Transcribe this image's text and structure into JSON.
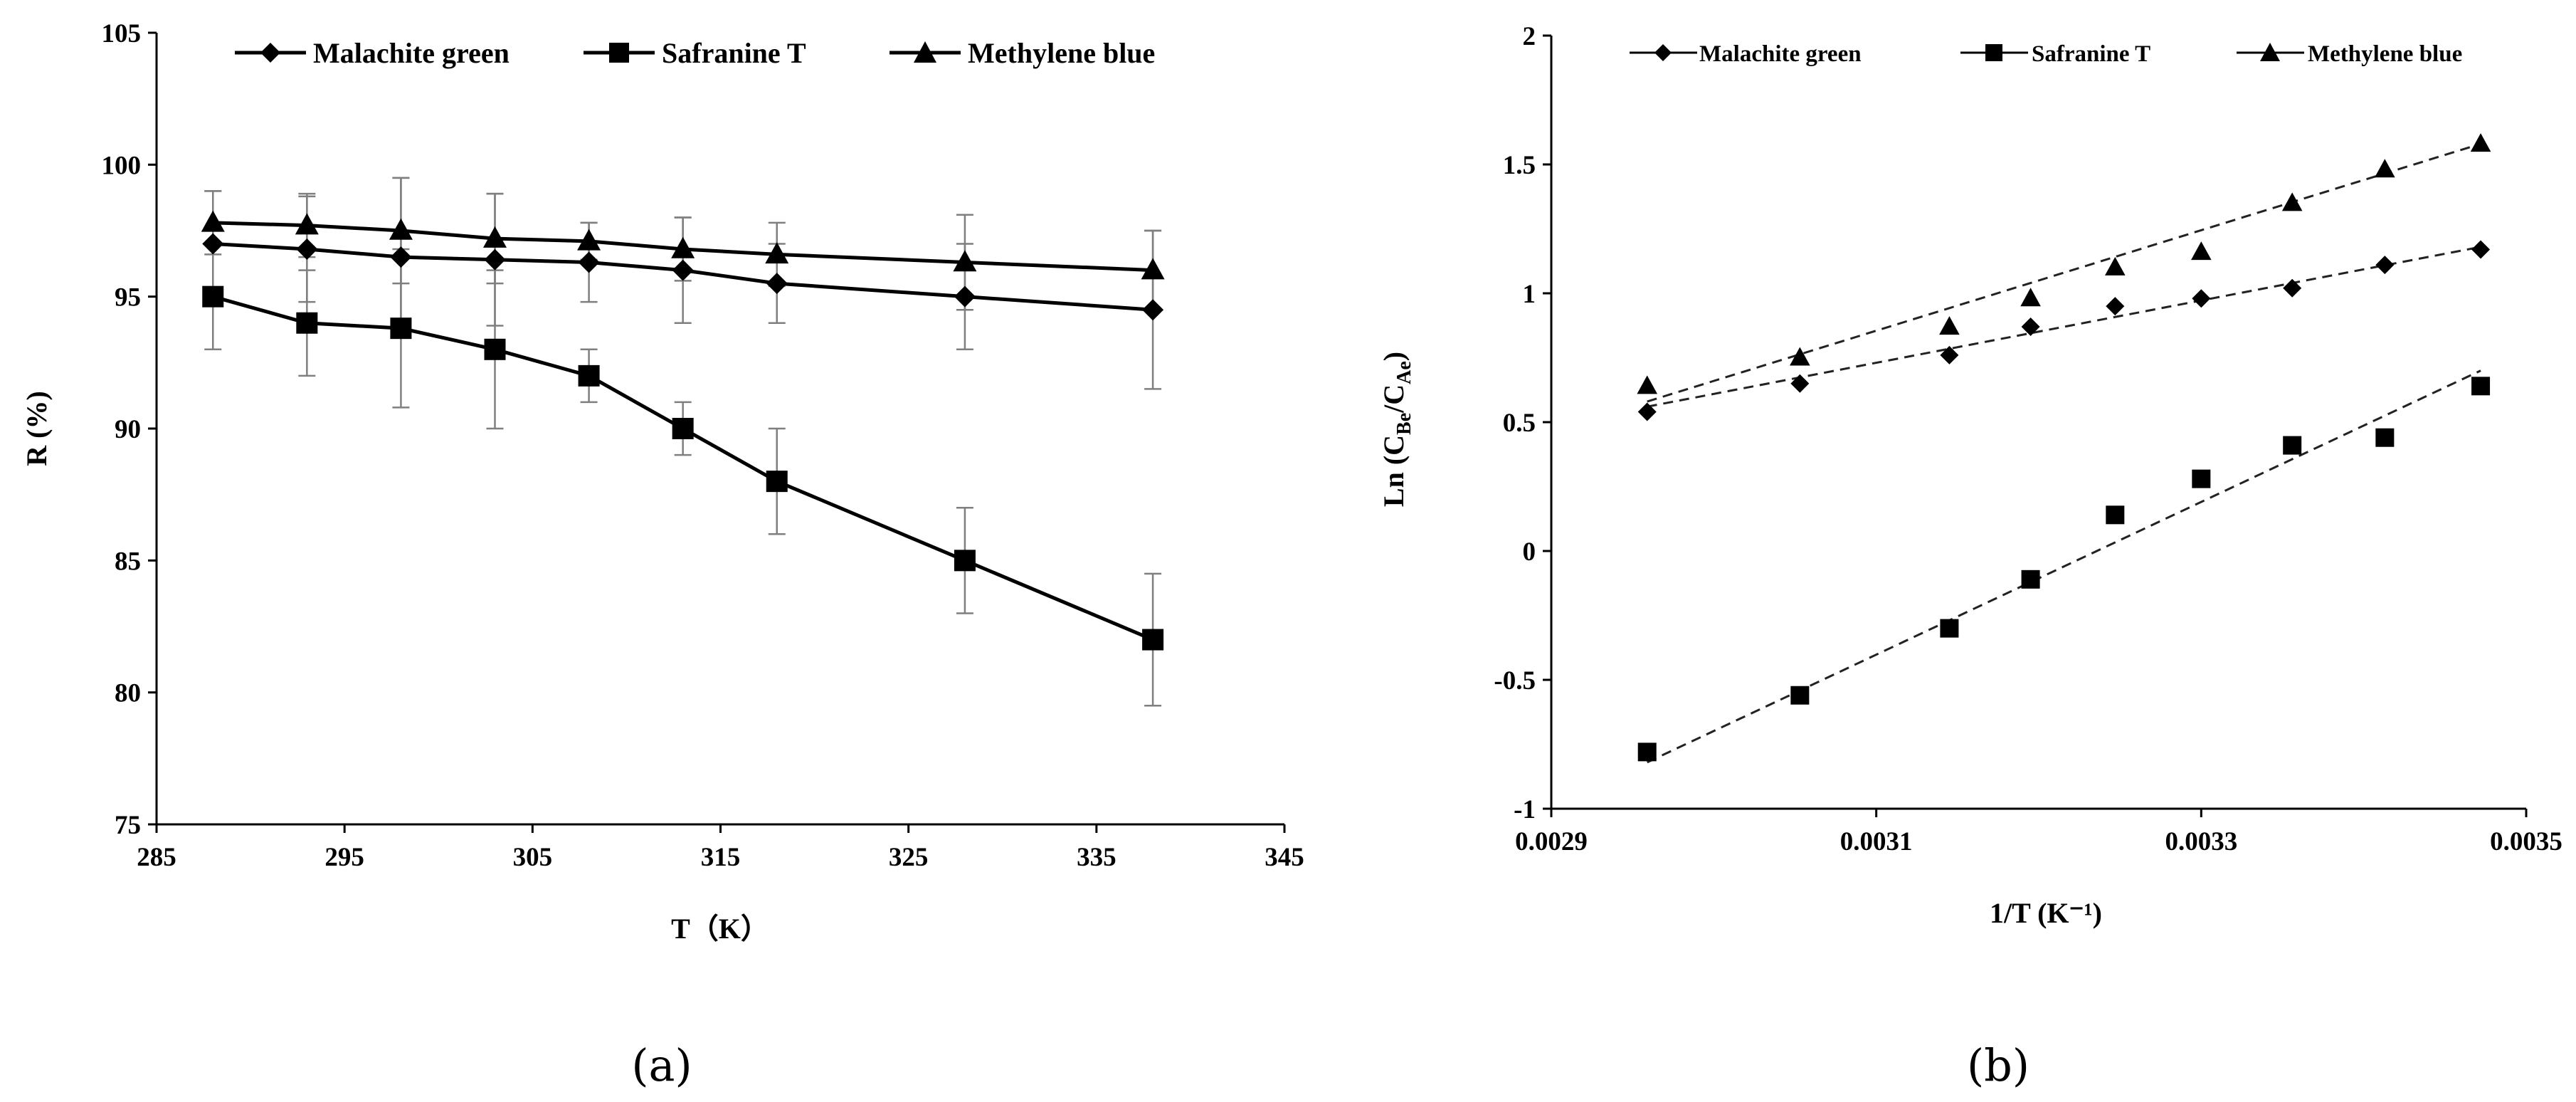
{
  "chart_data": [
    {
      "id": "a",
      "type": "line",
      "panel_label": "(a)",
      "xlabel": "T（K）",
      "ylabel": "R (%)",
      "xlim": [
        285,
        345
      ],
      "ylim": [
        75,
        105
      ],
      "xticks": [
        285,
        295,
        305,
        315,
        325,
        335,
        345
      ],
      "yticks": [
        75,
        80,
        85,
        90,
        95,
        100,
        105
      ],
      "legend_position": "top",
      "series": [
        {
          "name": "Malachite green",
          "marker": "diamond",
          "x": [
            288,
            293,
            298,
            303,
            308,
            313,
            318,
            328,
            338
          ],
          "y": [
            97.0,
            96.8,
            96.5,
            96.4,
            96.3,
            96.0,
            95.5,
            95.0,
            94.5
          ],
          "err": [
            2.0,
            2.0,
            3.0,
            2.5,
            1.5,
            2.0,
            1.5,
            2.0,
            3.0
          ]
        },
        {
          "name": "Safranine T",
          "marker": "square",
          "x": [
            288,
            293,
            298,
            303,
            308,
            313,
            318,
            328,
            338
          ],
          "y": [
            95.0,
            94.0,
            93.8,
            93.0,
            92.0,
            90.0,
            88.0,
            85.0,
            82.0
          ],
          "err": [
            2.0,
            2.0,
            3.0,
            3.0,
            1.0,
            1.0,
            2.0,
            2.0,
            2.5
          ]
        },
        {
          "name": "Methylene blue",
          "marker": "triangle",
          "x": [
            288,
            293,
            298,
            303,
            308,
            313,
            318,
            328,
            338
          ],
          "y": [
            97.8,
            97.7,
            97.5,
            97.2,
            97.1,
            96.8,
            96.6,
            96.3,
            96.0
          ],
          "err": [
            1.2,
            1.2,
            2.0,
            1.7,
            0.7,
            1.2,
            1.2,
            1.8,
            1.5
          ]
        }
      ]
    },
    {
      "id": "b",
      "type": "scatter",
      "panel_label": "(b)",
      "xlabel": "1/T (K⁻¹)",
      "ylabel": "Ln (C_Be/C_Ae)",
      "ylabel_main": "Ln (C",
      "ylabel_sub1": "Be",
      "ylabel_mid": "/C",
      "ylabel_sub2": "Ae",
      "ylabel_end": ")",
      "xlim": [
        0.0029,
        0.0035
      ],
      "ylim": [
        -1,
        2
      ],
      "xticks": [
        0.0029,
        0.0031,
        0.0033,
        0.0035
      ],
      "xtick_labels": [
        "0.0029",
        "0.0031",
        "0.0033",
        "0.0035"
      ],
      "yticks": [
        -1,
        -0.5,
        0,
        0.5,
        1,
        1.5,
        2
      ],
      "ytick_labels": [
        "-1",
        "-0.5",
        "0",
        "0.5",
        "1",
        "1.5",
        "2"
      ],
      "legend_position": "top",
      "series": [
        {
          "name": "Malachite green",
          "marker": "diamond",
          "x": [
            0.002959,
            0.003053,
            0.003145,
            0.003195,
            0.003247,
            0.0033,
            0.003356,
            0.003413,
            0.003472
          ],
          "y": [
            0.54,
            0.65,
            0.76,
            0.87,
            0.95,
            0.98,
            1.02,
            1.11,
            1.17
          ],
          "fit": [
            [
              0.002959,
              0.56
            ],
            [
              0.003472,
              1.18
            ]
          ]
        },
        {
          "name": "Safranine T",
          "marker": "square",
          "x": [
            0.002959,
            0.003053,
            0.003145,
            0.003195,
            0.003247,
            0.0033,
            0.003356,
            0.003413,
            0.003472
          ],
          "y": [
            -0.78,
            -0.56,
            -0.3,
            -0.11,
            0.14,
            0.28,
            0.41,
            0.44,
            0.64
          ],
          "fit": [
            [
              0.002959,
              -0.82
            ],
            [
              0.003472,
              0.7
            ]
          ]
        },
        {
          "name": "Methylene blue",
          "marker": "triangle",
          "x": [
            0.002959,
            0.003053,
            0.003145,
            0.003195,
            0.003247,
            0.0033,
            0.003356,
            0.003413,
            0.003472
          ],
          "y": [
            0.64,
            0.75,
            0.87,
            0.98,
            1.1,
            1.16,
            1.35,
            1.48,
            1.58
          ],
          "fit": [
            [
              0.002959,
              0.58
            ],
            [
              0.003472,
              1.58
            ]
          ]
        }
      ]
    }
  ]
}
